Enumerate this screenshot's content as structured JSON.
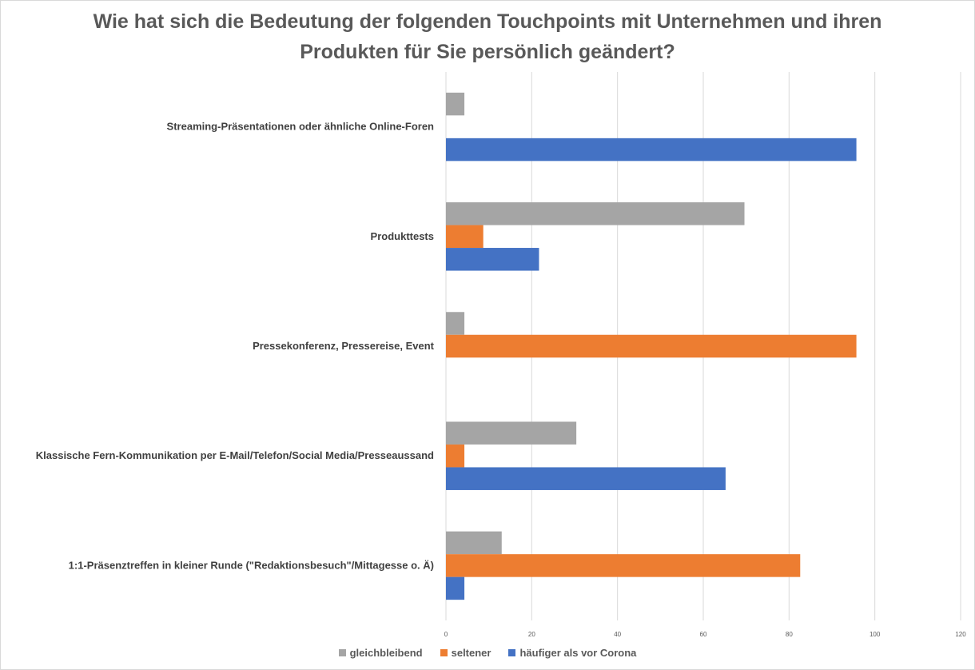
{
  "chart_data": {
    "type": "bar",
    "orientation": "horizontal",
    "title": [
      "Wie hat sich die Bedeutung der folgenden Touchpoints mit Unternehmen und ihren",
      "Produkten für Sie persönlich geändert?"
    ],
    "categories": [
      "Streaming-Präsentationen oder ähnliche Online-Foren",
      "Produkttests",
      "Pressekonferenz, Pressereise, Event",
      "Klassische Fern-Kommunikation per E-Mail/Telefon/Social Media/Presseaussand",
      "1:1-Präsenztreffen in kleiner Runde (\"Redaktionsbesuch\"/Mittagesse o. Ä)"
    ],
    "series": [
      {
        "name": "gleichbleibend",
        "color": "#a5a5a5",
        "values": [
          4.3,
          69.6,
          4.3,
          30.4,
          13
        ]
      },
      {
        "name": "seltener",
        "color": "#ed7d31",
        "values": [
          0,
          8.7,
          95.7,
          4.3,
          82.6
        ]
      },
      {
        "name": "häufiger als vor Corona",
        "color": "#4472c4",
        "values": [
          95.7,
          21.7,
          0,
          65.2,
          4.3
        ]
      }
    ],
    "xlim": [
      0,
      120
    ],
    "xticks": [
      0,
      20,
      40,
      60,
      80,
      100,
      120
    ],
    "grid": true,
    "legend": "bottom"
  }
}
